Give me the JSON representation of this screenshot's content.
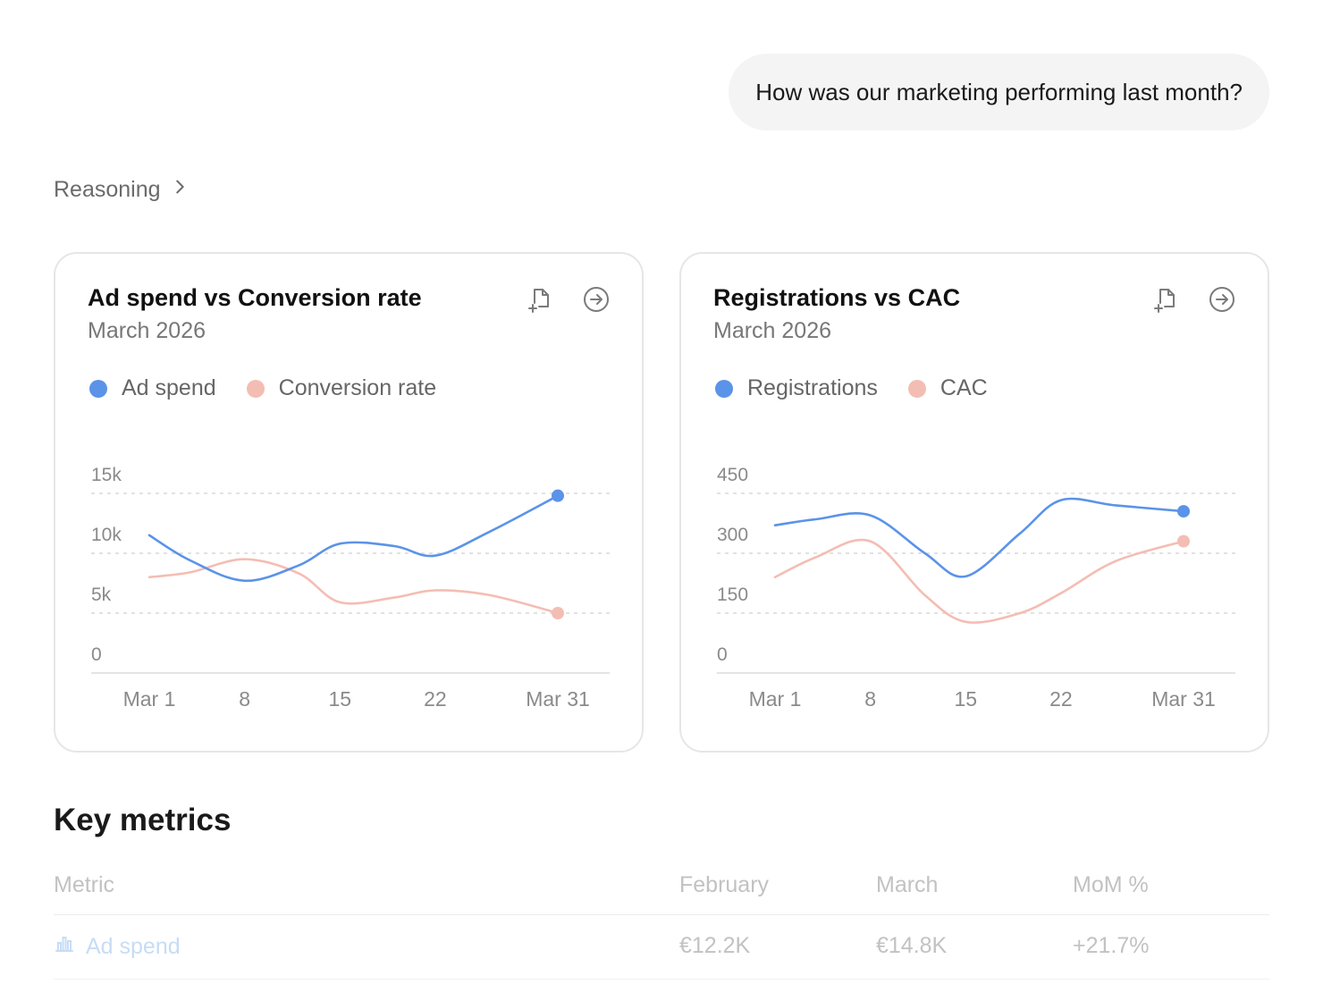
{
  "conversation": {
    "user_message": "How was our marketing performing last month?",
    "reasoning_label": "Reasoning"
  },
  "cards": [
    {
      "title": "Ad spend vs Conversion rate",
      "subtitle": "March 2026",
      "icons": [
        "add-to-document-icon",
        "open-arrow-icon"
      ]
    },
    {
      "title": "Registrations vs CAC",
      "subtitle": "March 2026",
      "icons": [
        "add-to-document-icon",
        "open-arrow-icon"
      ]
    }
  ],
  "chart_data": [
    {
      "type": "line",
      "title": "Ad spend vs Conversion rate",
      "subtitle": "March 2026",
      "x": [
        1,
        4,
        8,
        12,
        15,
        19,
        22,
        26,
        31
      ],
      "x_tick_labels": [
        "Mar 1",
        "8",
        "15",
        "22",
        "Mar 31"
      ],
      "x_ticks": [
        1,
        8,
        15,
        22,
        31
      ],
      "y_tick_labels": [
        "0",
        "5k",
        "10k",
        "15k"
      ],
      "y_ticks": [
        0,
        5000,
        10000,
        15000
      ],
      "ylim": [
        0,
        15000
      ],
      "grid": "dashed-horizontal",
      "legend": "top-left",
      "series": [
        {
          "name": "Ad spend",
          "color": "#5b93e8",
          "values": [
            11500,
            9400,
            7700,
            9000,
            10800,
            10600,
            9800,
            11800,
            14800
          ],
          "end_marker": true
        },
        {
          "name": "Conversion rate",
          "color": "#f4bdb3",
          "values": [
            8000,
            8400,
            9500,
            8300,
            5900,
            6300,
            6900,
            6500,
            5000
          ],
          "end_marker": true
        }
      ]
    },
    {
      "type": "line",
      "title": "Registrations vs CAC",
      "subtitle": "March 2026",
      "x": [
        1,
        4,
        8,
        12,
        15,
        19,
        22,
        26,
        31
      ],
      "x_tick_labels": [
        "Mar 1",
        "8",
        "15",
        "22",
        "Mar 31"
      ],
      "x_ticks": [
        1,
        8,
        15,
        22,
        31
      ],
      "y_tick_labels": [
        "0",
        "150",
        "300",
        "450"
      ],
      "y_ticks": [
        0,
        150,
        300,
        450
      ],
      "ylim": [
        0,
        450
      ],
      "grid": "dashed-horizontal",
      "legend": "top-left",
      "series": [
        {
          "name": "Registrations",
          "color": "#5b93e8",
          "values": [
            370,
            385,
            395,
            300,
            242,
            350,
            433,
            420,
            405
          ],
          "end_marker": true
        },
        {
          "name": "CAC",
          "color": "#f4bdb3",
          "values": [
            240,
            290,
            330,
            195,
            128,
            150,
            200,
            280,
            330
          ],
          "end_marker": true
        }
      ]
    }
  ],
  "key_metrics": {
    "title": "Key metrics",
    "columns": [
      "Metric",
      "February",
      "March",
      "MoM %"
    ],
    "rows": [
      {
        "metric": "Ad spend",
        "icon": "bar-chart-icon",
        "february": "€12.2K",
        "march": "€14.8K",
        "mom": "+21.7%"
      }
    ]
  }
}
